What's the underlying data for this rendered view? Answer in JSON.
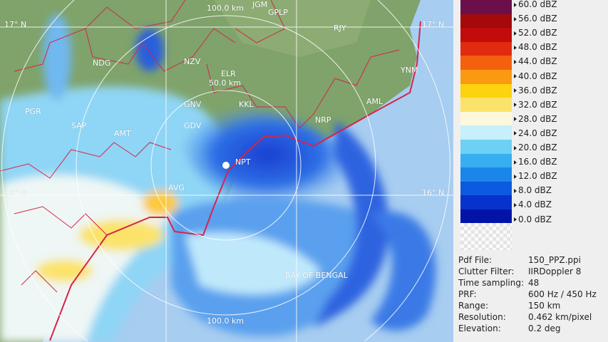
{
  "map": {
    "rings": [
      "50.0 km",
      "100.0 km",
      "100.0 km"
    ],
    "latitudes": [
      "17° N",
      "17° N",
      "16° N",
      "16° N"
    ],
    "places": [
      "JGM",
      "GPLP",
      "RJY",
      "NDG",
      "NZV",
      "ELR",
      "GNV",
      "KKL",
      "AML",
      "NRP",
      "GDV",
      "SAP",
      "AMT",
      "PGR",
      "NPT",
      "AVG",
      "YNM",
      "BAY OF BENGAL"
    ],
    "colors": {
      "land": "#7fa36a",
      "sea": "#a7cdf0",
      "boundary": "#d6244a",
      "ring": "#ffffff"
    }
  },
  "legend": {
    "items": [
      {
        "label": "60.0 dBZ",
        "color": "#6b0f4a"
      },
      {
        "label": "56.0 dBZ",
        "color": "#a50a0a"
      },
      {
        "label": "52.0 dBZ",
        "color": "#c20b0b"
      },
      {
        "label": "48.0 dBZ",
        "color": "#e02b10"
      },
      {
        "label": "44.0 dBZ",
        "color": "#f5600f"
      },
      {
        "label": "40.0 dBZ",
        "color": "#fa9a12"
      },
      {
        "label": "36.0 dBZ",
        "color": "#fdd20e"
      },
      {
        "label": "32.0 dBZ",
        "color": "#fbe36a"
      },
      {
        "label": "28.0 dBZ",
        "color": "#fdf8dc"
      },
      {
        "label": "24.0 dBZ",
        "color": "#c6f0fb"
      },
      {
        "label": "20.0 dBZ",
        "color": "#6dd0f4"
      },
      {
        "label": "16.0 dBZ",
        "color": "#36aef0"
      },
      {
        "label": "12.0 dBZ",
        "color": "#1b86ea"
      },
      {
        "label": "8.0 dBZ",
        "color": "#0c5adf"
      },
      {
        "label": "4.0 dBZ",
        "color": "#0633cc"
      },
      {
        "label": "0.0 dBZ",
        "color": "#0214a8"
      }
    ]
  },
  "info": [
    {
      "key": "Pdf File:",
      "value": "150_PPZ.ppi"
    },
    {
      "key": "Clutter Filter:",
      "value": "IIRDoppler 8"
    },
    {
      "key": "Time sampling:",
      "value": "48"
    },
    {
      "key": "PRF:",
      "value": "600 Hz / 450 Hz"
    },
    {
      "key": "Range:",
      "value": "150 km"
    },
    {
      "key": "Resolution:",
      "value": "0.462 km/pixel"
    },
    {
      "key": "Elevation:",
      "value": "0.2 deg"
    }
  ]
}
